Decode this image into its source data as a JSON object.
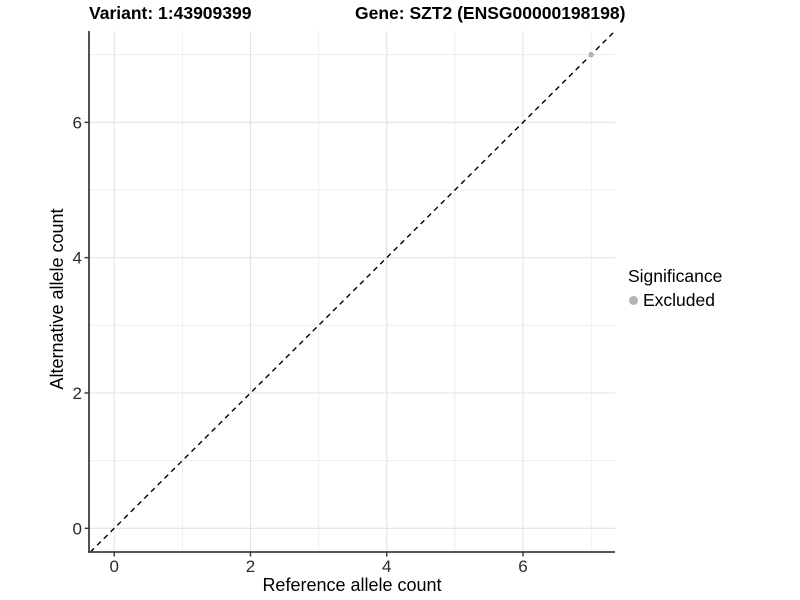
{
  "chart_data": {
    "type": "scatter",
    "title_left": "Variant: 1:43909399",
    "title_right": "Gene: SZT2 (ENSG00000198198)",
    "xlabel": "Reference allele count",
    "ylabel": "Alternative allele count",
    "xlim": [
      -0.37,
      7.35
    ],
    "ylim": [
      -0.35,
      7.35
    ],
    "x_ticks": [
      0,
      2,
      4,
      6
    ],
    "y_ticks": [
      0,
      2,
      4,
      6
    ],
    "x_minor_ticks": [
      1,
      3,
      5,
      7
    ],
    "y_minor_ticks": [
      1,
      3,
      5,
      7
    ],
    "grid": true,
    "series": [
      {
        "name": "Excluded",
        "color": "#b3b3b3",
        "points": [
          {
            "x": 7,
            "y": 7
          }
        ]
      }
    ],
    "reference_line": {
      "type": "identity y=x",
      "style": "dashed",
      "color": "#000000"
    },
    "legend": {
      "title": "Significance",
      "position": "right",
      "entries": [
        "Excluded"
      ]
    }
  },
  "colors": {
    "grid_major": "#e3e3e3",
    "grid_minor": "#ececec",
    "axis_line": "#3f3f3f",
    "tick_text": "#2b2b2b",
    "point": "#b3b3b3"
  }
}
